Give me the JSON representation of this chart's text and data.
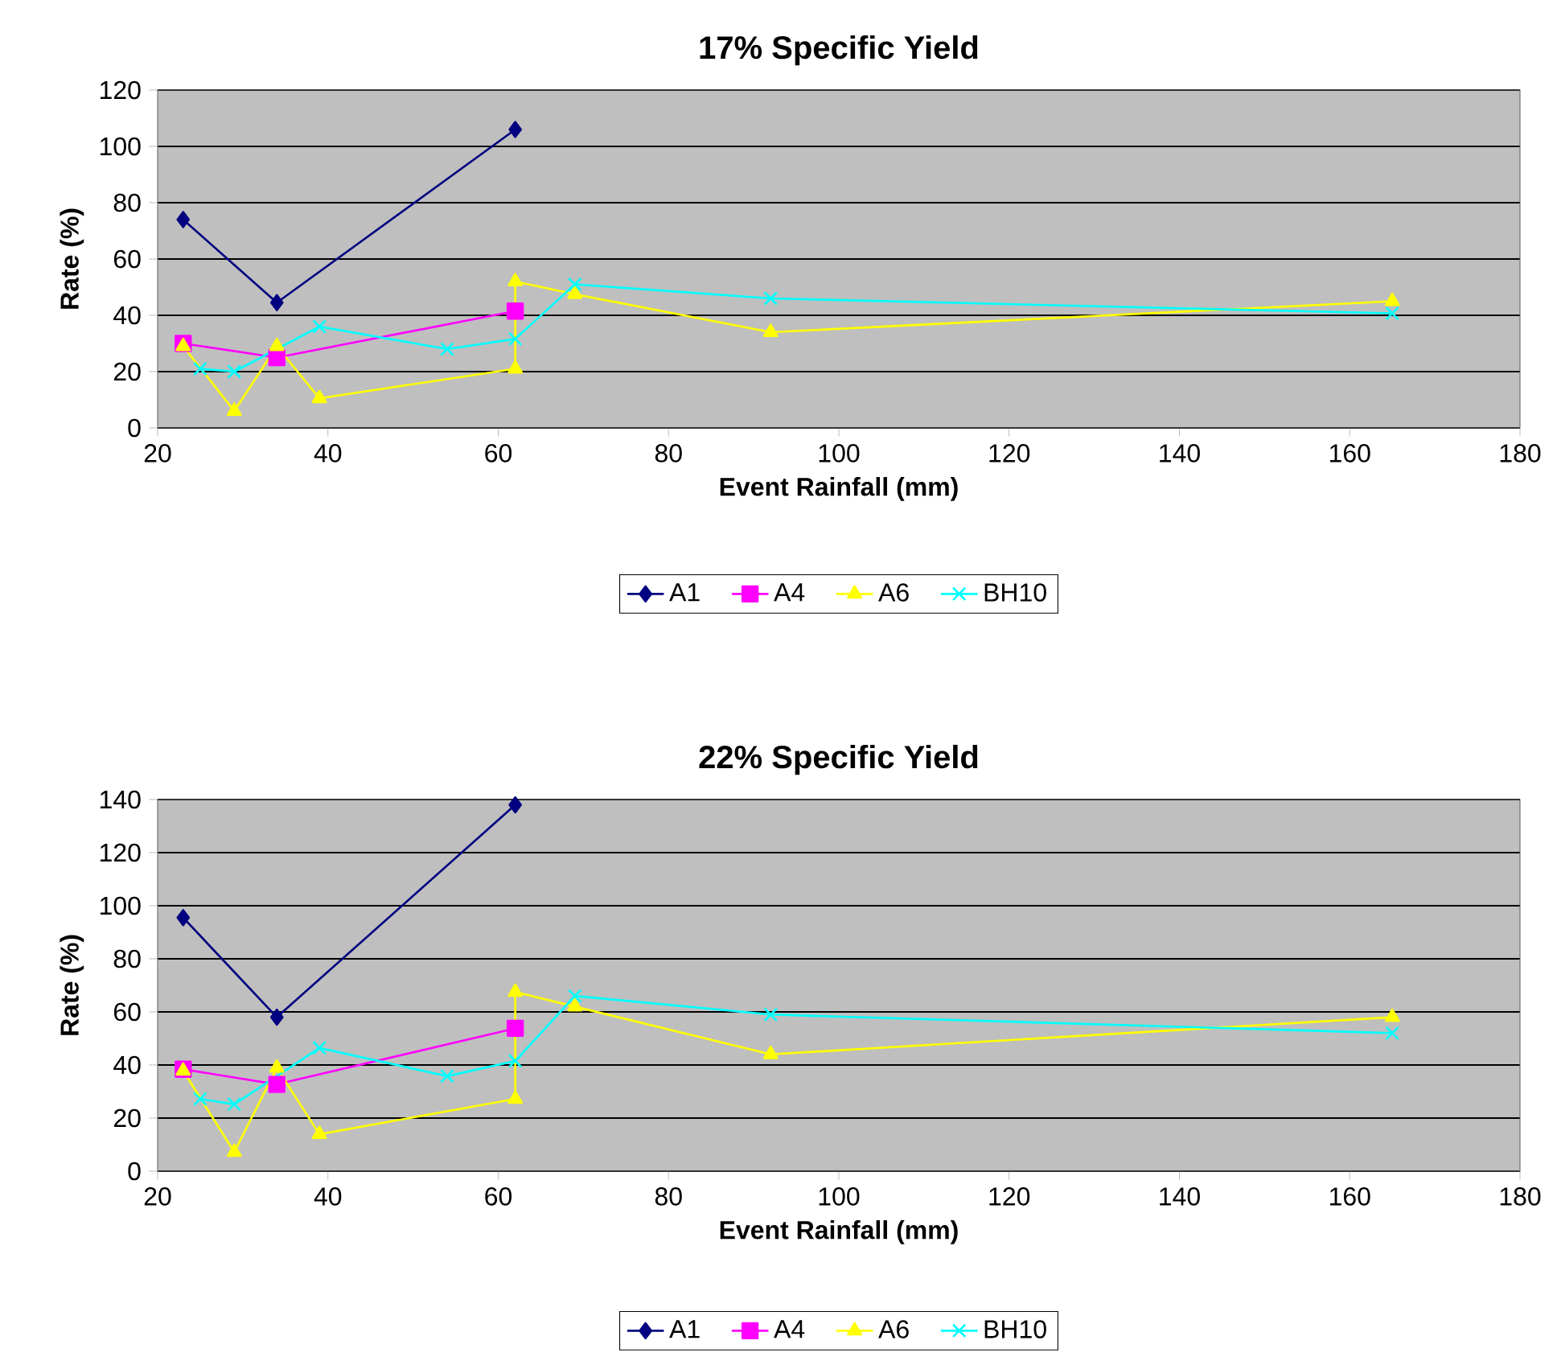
{
  "chart_data": [
    {
      "type": "line",
      "title": "17% Specific Yield",
      "xlabel": "Event Rainfall (mm)",
      "ylabel": "Rate (%)",
      "xlim": [
        20,
        180
      ],
      "xticks": [
        20,
        40,
        60,
        80,
        100,
        120,
        140,
        160,
        180
      ],
      "ylim": [
        0,
        120
      ],
      "yticks": [
        0,
        20,
        40,
        60,
        80,
        100,
        120
      ],
      "grid": "y",
      "legend": "bottom",
      "series": [
        {
          "name": "A1",
          "color": "#000080",
          "marker": "diamond",
          "x": [
            23,
            34,
            62
          ],
          "values": [
            74,
            44.5,
            106
          ]
        },
        {
          "name": "A4",
          "color": "#ff00ff",
          "marker": "square",
          "x": [
            23,
            34,
            62
          ],
          "values": [
            30,
            25,
            41.5
          ]
        },
        {
          "name": "A6",
          "color": "#ffff00",
          "marker": "triangle",
          "x": [
            23,
            29,
            34,
            39,
            62,
            62,
            69,
            92,
            165
          ],
          "values": [
            29,
            6,
            29,
            10.5,
            21,
            52,
            47.5,
            34,
            45
          ]
        },
        {
          "name": "BH10",
          "color": "#00ffff",
          "marker": "cross",
          "x": [
            25,
            29,
            39,
            54,
            62,
            69,
            92,
            165
          ],
          "values": [
            21,
            20,
            36,
            28,
            31.6,
            51,
            46,
            40.7
          ]
        }
      ]
    },
    {
      "type": "line",
      "title": "22% Specific Yield",
      "xlabel": "Event Rainfall (mm)",
      "ylabel": "Rate (%)",
      "xlim": [
        20,
        180
      ],
      "xticks": [
        20,
        40,
        60,
        80,
        100,
        120,
        140,
        160,
        180
      ],
      "ylim": [
        0,
        140
      ],
      "yticks": [
        0,
        20,
        40,
        60,
        80,
        100,
        120,
        140
      ],
      "grid": "y",
      "legend": "bottom",
      "series": [
        {
          "name": "A1",
          "color": "#000080",
          "marker": "diamond",
          "x": [
            23,
            34,
            62
          ],
          "values": [
            95.5,
            58,
            138
          ]
        },
        {
          "name": "A4",
          "color": "#ff00ff",
          "marker": "square",
          "x": [
            23,
            34,
            62
          ],
          "values": [
            38.4,
            32.7,
            53.8
          ]
        },
        {
          "name": "A6",
          "color": "#ffff00",
          "marker": "triangle",
          "x": [
            23,
            29,
            34,
            39,
            62,
            62,
            69,
            92,
            165
          ],
          "values": [
            37.8,
            7.2,
            38.9,
            13.9,
            27.2,
            67.5,
            62,
            44,
            58
          ]
        },
        {
          "name": "BH10",
          "color": "#00ffff",
          "marker": "cross",
          "x": [
            25,
            29,
            39,
            54,
            62,
            69,
            92,
            165
          ],
          "values": [
            27.2,
            25.2,
            46.4,
            35.8,
            41.5,
            66,
            59,
            52
          ]
        }
      ]
    }
  ]
}
